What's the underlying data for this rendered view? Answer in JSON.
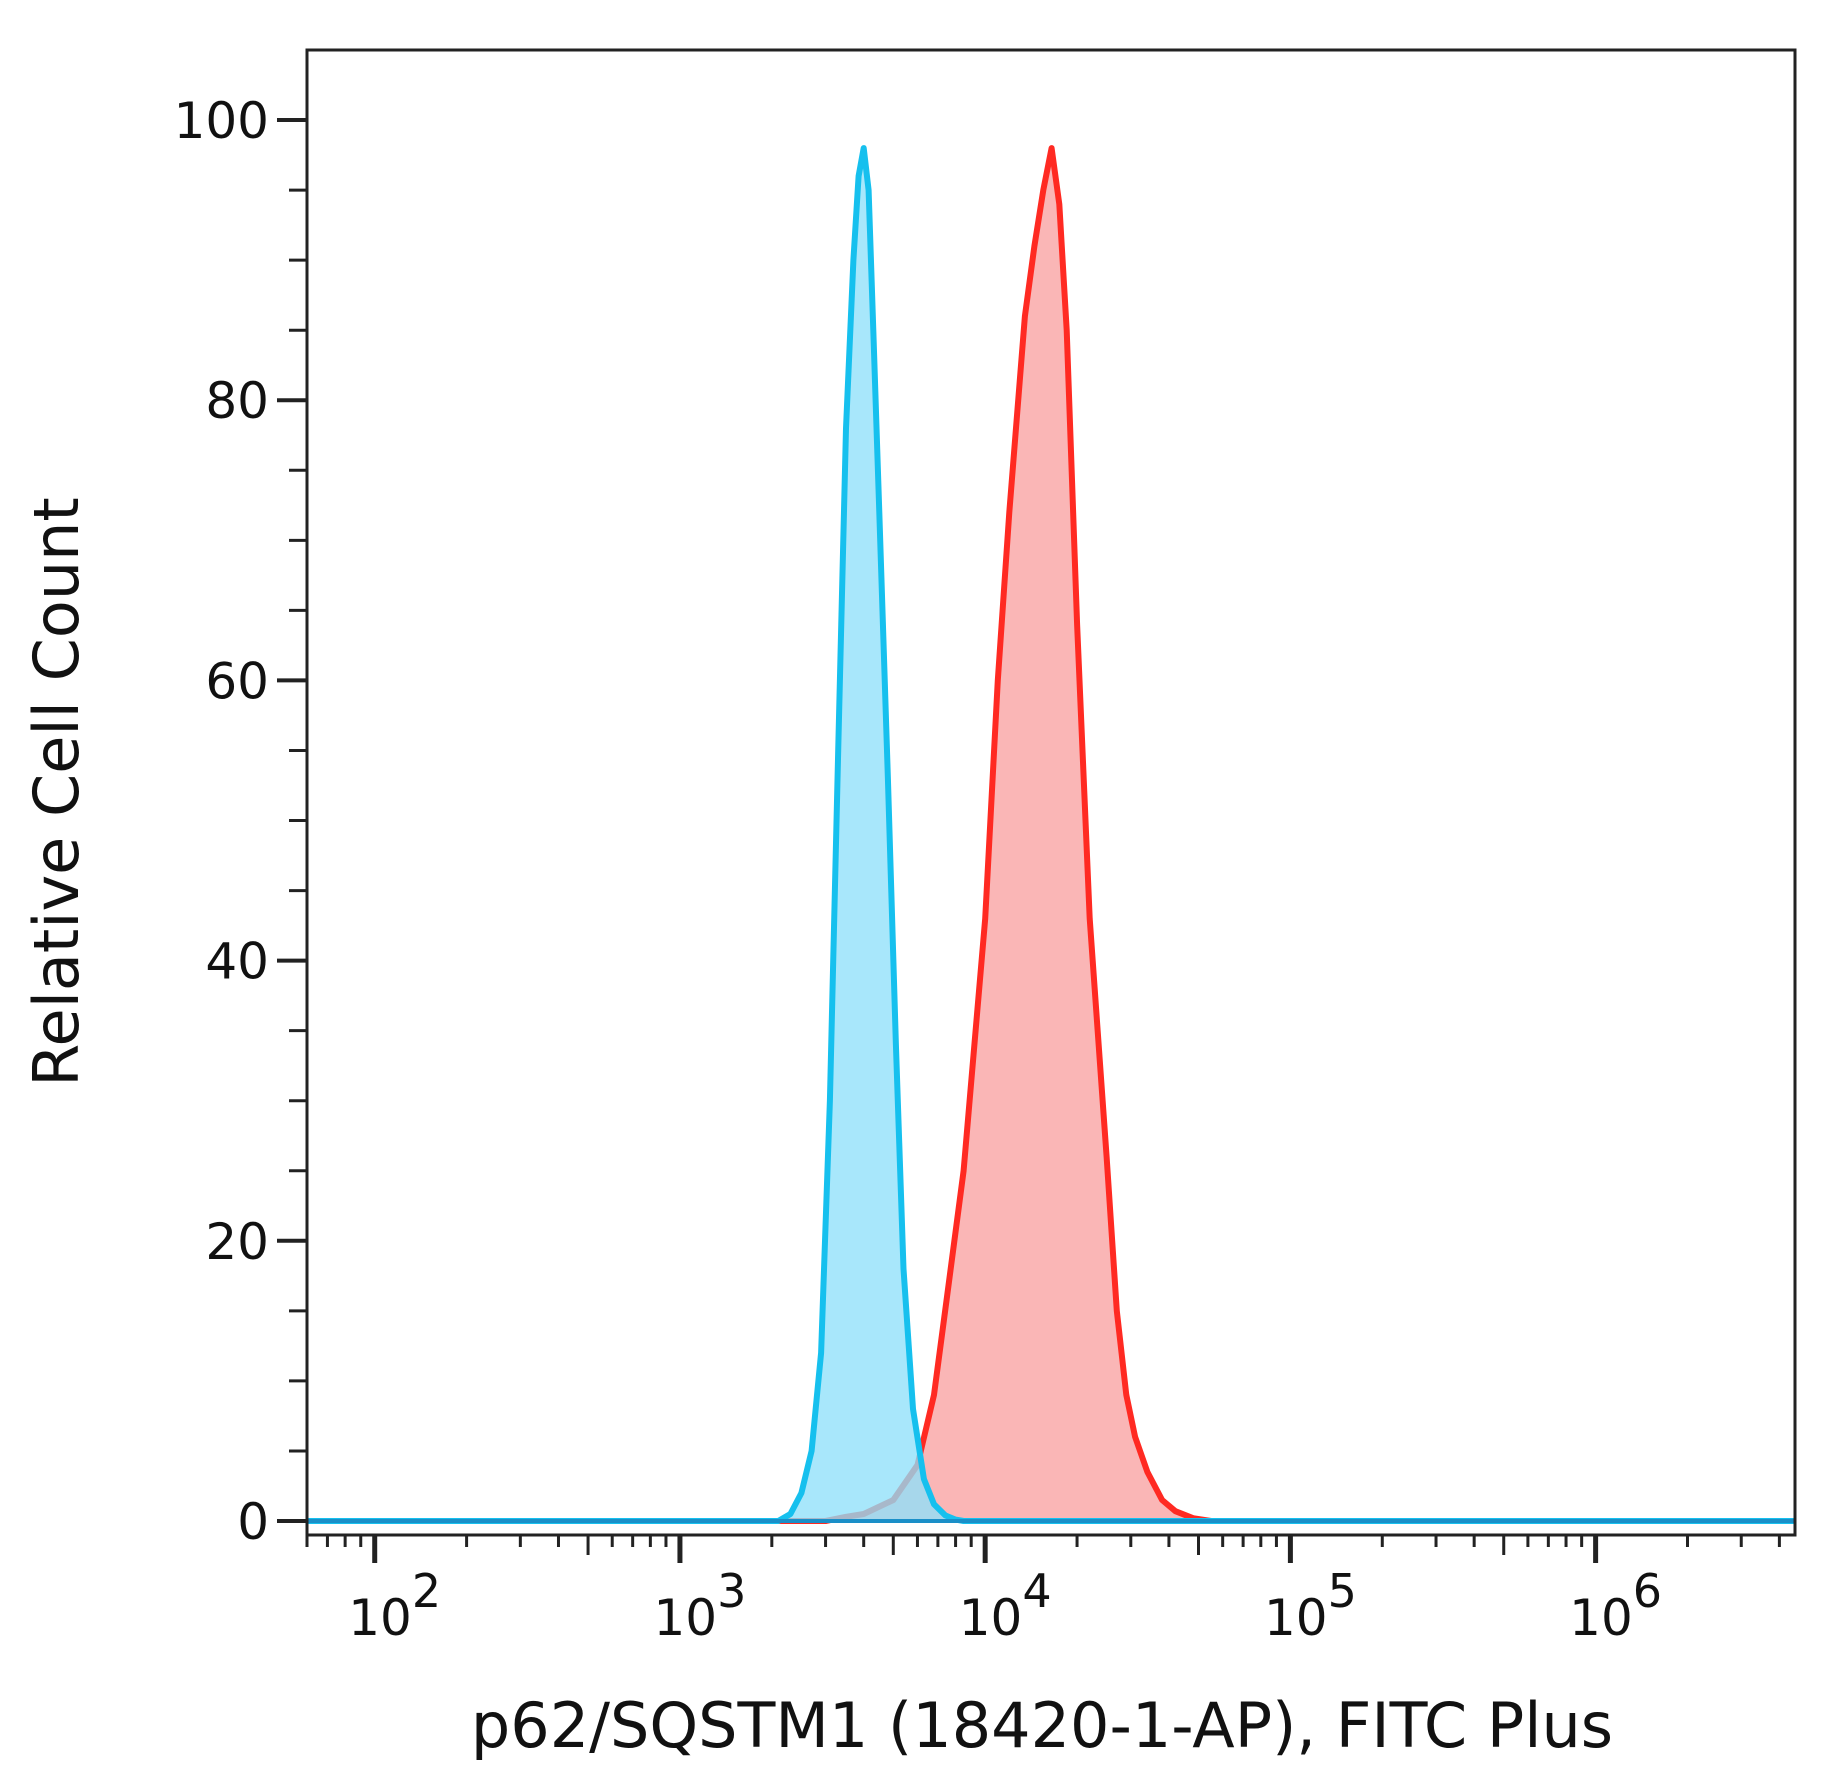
{
  "chart_data": {
    "type": "area",
    "title": "",
    "xlabel": "p62/SQSTM1 (18420-1-AP), FITC Plus",
    "ylabel": "Relative Cell Count",
    "xscale": "log",
    "xlim": [
      60,
      4500000
    ],
    "ylim": [
      -1,
      105
    ],
    "grid": false,
    "legend": "none",
    "y_ticks": [
      0,
      20,
      40,
      60,
      80,
      100
    ],
    "y_tick_labels": [
      "0",
      "20",
      "40",
      "60",
      "80",
      "100"
    ],
    "x_ticks": [
      100,
      1000,
      10000,
      100000,
      1000000
    ],
    "x_tick_labels": [
      {
        "base": "10",
        "exp": "2"
      },
      {
        "base": "10",
        "exp": "3"
      },
      {
        "base": "10",
        "exp": "4"
      },
      {
        "base": "10",
        "exp": "5"
      },
      {
        "base": "10",
        "exp": "6"
      }
    ],
    "series": [
      {
        "line_color": "#ff2a22",
        "fill_color": "#f8a1a1",
        "x": [
          3000,
          3500,
          4000,
          5000,
          6000,
          6800,
          7500,
          8500,
          10000,
          11000,
          12000,
          13500,
          14500,
          15500,
          16500,
          17500,
          18500,
          20000,
          22000,
          25000,
          27000,
          29000,
          31000,
          34000,
          38000,
          42000,
          48000,
          55000
        ],
        "y": [
          0,
          0.3,
          0.5,
          1.5,
          4,
          9,
          16,
          25,
          43,
          60,
          72,
          86,
          91,
          95,
          98,
          94,
          85,
          64,
          43,
          26,
          15,
          9,
          6,
          3.5,
          1.5,
          0.7,
          0.2,
          0
        ]
      },
      {
        "line_color": "#16c0ee",
        "fill_color": "#8fe0fa",
        "x": [
          2100,
          2300,
          2500,
          2700,
          2900,
          3100,
          3300,
          3500,
          3700,
          3850,
          4000,
          4150,
          4300,
          4500,
          4800,
          5100,
          5400,
          5800,
          6300,
          6800,
          7400,
          8000,
          8500
        ],
        "y": [
          0,
          0.5,
          2,
          5,
          12,
          30,
          55,
          78,
          90,
          96,
          98,
          95,
          85,
          72,
          53,
          34,
          18,
          8,
          3,
          1.2,
          0.4,
          0.1,
          0
        ]
      }
    ]
  }
}
